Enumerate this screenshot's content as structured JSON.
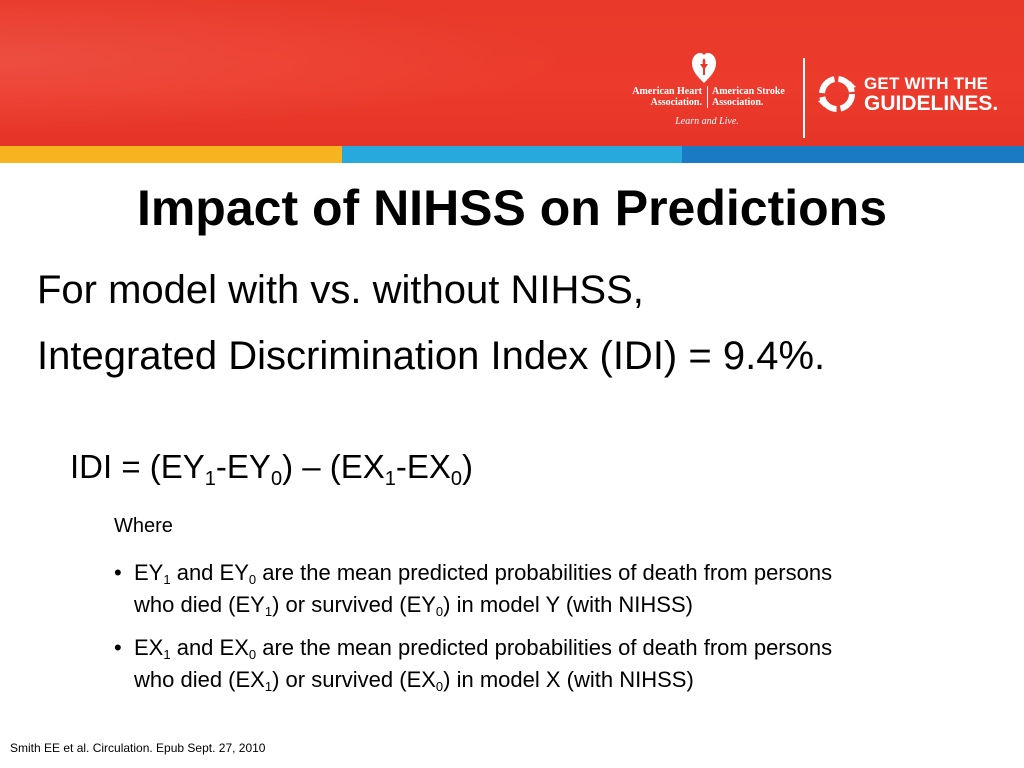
{
  "header": {
    "aha_left_line1": "American Heart",
    "aha_left_line2": "Association.",
    "aha_right_line1": "American Stroke",
    "aha_right_line2": "Association.",
    "aha_tagline": "Learn and Live.",
    "gwtg_line1": "GET WITH THE",
    "gwtg_line2": "GUIDELINES.",
    "colors": {
      "header_red": "#e8392a",
      "stripe_yellow": "#f7b41f",
      "stripe_cyan": "#27a9dd",
      "stripe_blue": "#1a7ac4"
    }
  },
  "slide": {
    "title": "Impact of NIHSS on Predictions",
    "line1": "For model with vs. without NIHSS,",
    "line2": "Integrated Discrimination Index (IDI) = 9.4%.",
    "formula": {
      "lhs": "IDI = (EY",
      "s1": "1",
      "t1": "-EY",
      "s2": "0",
      "t2": ") – (EX",
      "s3": "1",
      "t3": "-EX",
      "s4": "0",
      "t4": ")"
    },
    "where": "Where",
    "bullet_symbol": "•",
    "bullet1": {
      "a": "EY",
      "a_sub": "1",
      "b": " and EY",
      "b_sub": "0",
      "c": " are the mean predicted probabilities of death from persons",
      "d": "who died (EY",
      "d_sub": "1",
      "e": ") or survived (EY",
      "e_sub": "0",
      "f": ") in model Y (with NIHSS)"
    },
    "bullet2": {
      "a": "EX",
      "a_sub": "1",
      "b": " and EX",
      "b_sub": "0",
      "c": " are the mean predicted probabilities of death from persons",
      "d": "who died (EX",
      "d_sub": "1",
      "e": ") or survived (EX",
      "e_sub": "0",
      "f": ") in model X (with NIHSS)"
    },
    "citation": "Smith EE et al. Circulation.  Epub Sept. 27, 2010"
  }
}
